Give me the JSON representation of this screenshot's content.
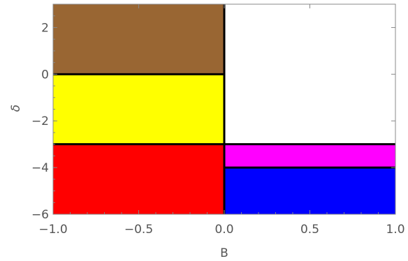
{
  "chart_data": {
    "type": "heatmap",
    "xlabel": "B",
    "ylabel": "δ",
    "xlim": [
      -1.0,
      1.0
    ],
    "ylim": [
      -6,
      3
    ],
    "x_ticks": [
      -1.0,
      -0.5,
      0.0,
      0.5,
      1.0
    ],
    "x_tick_labels": [
      "−1.0",
      "−0.5",
      "0.0",
      "0.5",
      "1.0"
    ],
    "y_ticks": [
      -6,
      -4,
      -2,
      0,
      2
    ],
    "y_tick_labels": [
      "−6",
      "−4",
      "−2",
      "0",
      "2"
    ],
    "grid": false,
    "regions": [
      {
        "x": [
          -1.0,
          0.0
        ],
        "y": [
          0,
          3
        ],
        "color": "#996633"
      },
      {
        "x": [
          -1.0,
          0.0
        ],
        "y": [
          -3,
          0
        ],
        "color": "#FFFF00"
      },
      {
        "x": [
          -1.0,
          0.0
        ],
        "y": [
          -6,
          -3
        ],
        "color": "#FF0000"
      },
      {
        "x": [
          0.0,
          1.0
        ],
        "y": [
          -3,
          3
        ],
        "color": "#FFFFFF"
      },
      {
        "x": [
          0.0,
          1.0
        ],
        "y": [
          -4,
          -3
        ],
        "color": "#FF00FF"
      },
      {
        "x": [
          0.0,
          1.0
        ],
        "y": [
          -6,
          -4
        ],
        "color": "#0000FF"
      }
    ],
    "boundaries": [
      {
        "x": [
          0.0,
          0.0
        ],
        "y": [
          -6,
          3
        ]
      },
      {
        "x": [
          -1.0,
          0.0
        ],
        "y": [
          0,
          0
        ]
      },
      {
        "x": [
          -1.0,
          1.0
        ],
        "y": [
          -3,
          -3
        ]
      },
      {
        "x": [
          0.0,
          1.0
        ],
        "y": [
          -4,
          -4
        ]
      }
    ]
  }
}
